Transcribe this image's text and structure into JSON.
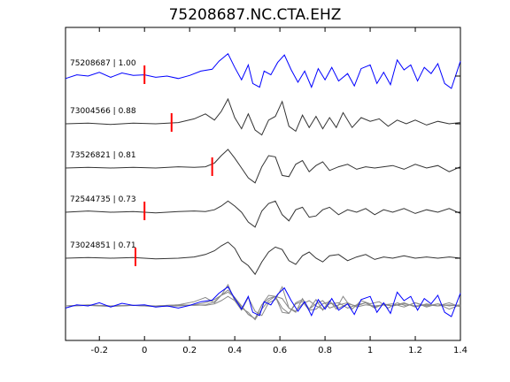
{
  "chart_data": {
    "type": "line",
    "title": "75208687.NC.CTA.EHZ",
    "xlabel": "",
    "ylabel": "",
    "xlim": [
      -0.35,
      1.4
    ],
    "x_ticks": [
      "-0.2",
      "0",
      "0.2",
      "0.4",
      "0.6",
      "0.8",
      "1",
      "1.2",
      "1.4"
    ],
    "x_tick_values": [
      -0.2,
      0,
      0.2,
      0.4,
      0.6,
      0.8,
      1.0,
      1.2,
      1.4
    ],
    "grid": false,
    "series": [
      {
        "name": "75208687 | 1.00",
        "color": "#0000ff",
        "pick_time": 0.0,
        "points": [
          [
            -0.35,
            -0.2
          ],
          [
            -0.3,
            0.1
          ],
          [
            -0.25,
            0.0
          ],
          [
            -0.2,
            0.3
          ],
          [
            -0.15,
            -0.1
          ],
          [
            -0.1,
            0.25
          ],
          [
            -0.05,
            0.05
          ],
          [
            0.0,
            0.1
          ],
          [
            0.05,
            -0.1
          ],
          [
            0.1,
            0.0
          ],
          [
            0.15,
            -0.2
          ],
          [
            0.2,
            0.05
          ],
          [
            0.25,
            0.4
          ],
          [
            0.3,
            0.55
          ],
          [
            0.33,
            1.2
          ],
          [
            0.37,
            1.8
          ],
          [
            0.4,
            0.7
          ],
          [
            0.43,
            -0.3
          ],
          [
            0.46,
            0.9
          ],
          [
            0.48,
            -0.6
          ],
          [
            0.51,
            -0.9
          ],
          [
            0.53,
            0.4
          ],
          [
            0.56,
            0.1
          ],
          [
            0.59,
            1.1
          ],
          [
            0.62,
            1.7
          ],
          [
            0.65,
            0.5
          ],
          [
            0.68,
            -0.5
          ],
          [
            0.71,
            0.4
          ],
          [
            0.74,
            -0.9
          ],
          [
            0.77,
            0.6
          ],
          [
            0.8,
            -0.3
          ],
          [
            0.83,
            0.7
          ],
          [
            0.86,
            -0.4
          ],
          [
            0.9,
            0.2
          ],
          [
            0.93,
            -0.8
          ],
          [
            0.96,
            0.6
          ],
          [
            1.0,
            0.9
          ],
          [
            1.03,
            -0.6
          ],
          [
            1.06,
            0.3
          ],
          [
            1.09,
            -0.7
          ],
          [
            1.12,
            1.3
          ],
          [
            1.15,
            0.5
          ],
          [
            1.18,
            0.9
          ],
          [
            1.21,
            -0.4
          ],
          [
            1.24,
            0.7
          ],
          [
            1.27,
            0.2
          ],
          [
            1.3,
            1.0
          ],
          [
            1.33,
            -0.6
          ],
          [
            1.36,
            -1.0
          ],
          [
            1.4,
            1.2
          ]
        ]
      },
      {
        "name": "73004566 | 0.88",
        "color": "#333333",
        "pick_time": 0.12,
        "points": [
          [
            -0.35,
            0.0
          ],
          [
            -0.25,
            0.05
          ],
          [
            -0.15,
            -0.05
          ],
          [
            -0.05,
            0.05
          ],
          [
            0.05,
            0.0
          ],
          [
            0.15,
            0.1
          ],
          [
            0.22,
            0.4
          ],
          [
            0.27,
            0.8
          ],
          [
            0.31,
            0.3
          ],
          [
            0.34,
            1.0
          ],
          [
            0.37,
            2.0
          ],
          [
            0.4,
            0.5
          ],
          [
            0.43,
            -0.4
          ],
          [
            0.46,
            0.8
          ],
          [
            0.49,
            -0.5
          ],
          [
            0.52,
            -0.9
          ],
          [
            0.55,
            0.3
          ],
          [
            0.58,
            0.6
          ],
          [
            0.61,
            1.8
          ],
          [
            0.64,
            -0.2
          ],
          [
            0.67,
            -0.6
          ],
          [
            0.7,
            0.7
          ],
          [
            0.73,
            -0.3
          ],
          [
            0.76,
            0.6
          ],
          [
            0.79,
            -0.4
          ],
          [
            0.82,
            0.5
          ],
          [
            0.85,
            -0.3
          ],
          [
            0.88,
            0.9
          ],
          [
            0.92,
            -0.3
          ],
          [
            0.96,
            0.5
          ],
          [
            1.0,
            0.2
          ],
          [
            1.04,
            0.4
          ],
          [
            1.08,
            -0.2
          ],
          [
            1.12,
            0.3
          ],
          [
            1.16,
            0.0
          ],
          [
            1.2,
            0.3
          ],
          [
            1.25,
            -0.1
          ],
          [
            1.3,
            0.2
          ],
          [
            1.35,
            0.0
          ],
          [
            1.4,
            0.1
          ]
        ]
      },
      {
        "name": "73526821 | 0.81",
        "color": "#333333",
        "pick_time": 0.3,
        "points": [
          [
            -0.35,
            0.0
          ],
          [
            -0.25,
            0.05
          ],
          [
            -0.15,
            0.0
          ],
          [
            -0.05,
            0.05
          ],
          [
            0.05,
            0.0
          ],
          [
            0.15,
            0.1
          ],
          [
            0.22,
            0.05
          ],
          [
            0.27,
            0.1
          ],
          [
            0.31,
            0.4
          ],
          [
            0.34,
            1.0
          ],
          [
            0.37,
            1.5
          ],
          [
            0.4,
            0.8
          ],
          [
            0.43,
            0.0
          ],
          [
            0.46,
            -0.8
          ],
          [
            0.49,
            -1.2
          ],
          [
            0.52,
            0.1
          ],
          [
            0.55,
            1.0
          ],
          [
            0.58,
            0.9
          ],
          [
            0.61,
            -0.6
          ],
          [
            0.64,
            -0.7
          ],
          [
            0.67,
            0.3
          ],
          [
            0.7,
            0.6
          ],
          [
            0.73,
            -0.3
          ],
          [
            0.76,
            0.2
          ],
          [
            0.79,
            0.5
          ],
          [
            0.82,
            -0.2
          ],
          [
            0.86,
            0.1
          ],
          [
            0.9,
            0.3
          ],
          [
            0.94,
            -0.1
          ],
          [
            0.98,
            0.1
          ],
          [
            1.02,
            0.0
          ],
          [
            1.06,
            0.1
          ],
          [
            1.1,
            0.2
          ],
          [
            1.15,
            -0.1
          ],
          [
            1.2,
            0.3
          ],
          [
            1.25,
            0.0
          ],
          [
            1.3,
            0.2
          ],
          [
            1.35,
            -0.3
          ],
          [
            1.4,
            0.1
          ]
        ]
      },
      {
        "name": "72544735 | 0.73",
        "color": "#333333",
        "pick_time": 0.0,
        "points": [
          [
            -0.35,
            0.0
          ],
          [
            -0.25,
            0.1
          ],
          [
            -0.15,
            0.0
          ],
          [
            -0.05,
            0.05
          ],
          [
            0.05,
            -0.05
          ],
          [
            0.15,
            0.05
          ],
          [
            0.22,
            0.1
          ],
          [
            0.27,
            0.05
          ],
          [
            0.31,
            0.2
          ],
          [
            0.34,
            0.5
          ],
          [
            0.37,
            0.9
          ],
          [
            0.4,
            0.5
          ],
          [
            0.43,
            0.0
          ],
          [
            0.46,
            -0.8
          ],
          [
            0.49,
            -1.2
          ],
          [
            0.52,
            0.1
          ],
          [
            0.55,
            0.7
          ],
          [
            0.58,
            0.9
          ],
          [
            0.61,
            -0.2
          ],
          [
            0.64,
            -0.7
          ],
          [
            0.67,
            0.2
          ],
          [
            0.7,
            0.4
          ],
          [
            0.73,
            -0.4
          ],
          [
            0.76,
            -0.3
          ],
          [
            0.79,
            0.2
          ],
          [
            0.82,
            0.4
          ],
          [
            0.86,
            -0.2
          ],
          [
            0.9,
            0.2
          ],
          [
            0.94,
            0.0
          ],
          [
            0.98,
            0.3
          ],
          [
            1.02,
            -0.2
          ],
          [
            1.06,
            0.2
          ],
          [
            1.1,
            0.0
          ],
          [
            1.15,
            0.3
          ],
          [
            1.2,
            -0.1
          ],
          [
            1.25,
            0.2
          ],
          [
            1.3,
            0.0
          ],
          [
            1.35,
            0.3
          ],
          [
            1.4,
            -0.1
          ]
        ]
      },
      {
        "name": "73024851 | 0.71",
        "color": "#333333",
        "pick_time": -0.04,
        "points": [
          [
            -0.35,
            0.0
          ],
          [
            -0.25,
            0.05
          ],
          [
            -0.15,
            0.0
          ],
          [
            -0.05,
            0.05
          ],
          [
            0.05,
            -0.05
          ],
          [
            0.15,
            0.0
          ],
          [
            0.22,
            0.1
          ],
          [
            0.27,
            0.3
          ],
          [
            0.31,
            0.6
          ],
          [
            0.34,
            1.0
          ],
          [
            0.37,
            1.3
          ],
          [
            0.4,
            0.8
          ],
          [
            0.43,
            -0.2
          ],
          [
            0.46,
            -0.6
          ],
          [
            0.49,
            -1.3
          ],
          [
            0.52,
            -0.3
          ],
          [
            0.55,
            0.5
          ],
          [
            0.58,
            0.9
          ],
          [
            0.61,
            0.7
          ],
          [
            0.64,
            -0.2
          ],
          [
            0.67,
            -0.5
          ],
          [
            0.7,
            0.2
          ],
          [
            0.73,
            0.5
          ],
          [
            0.76,
            0.0
          ],
          [
            0.79,
            -0.3
          ],
          [
            0.82,
            0.2
          ],
          [
            0.86,
            0.3
          ],
          [
            0.9,
            -0.2
          ],
          [
            0.94,
            0.1
          ],
          [
            0.98,
            0.3
          ],
          [
            1.02,
            -0.1
          ],
          [
            1.06,
            0.1
          ],
          [
            1.1,
            0.0
          ],
          [
            1.15,
            0.2
          ],
          [
            1.2,
            0.0
          ],
          [
            1.25,
            0.1
          ],
          [
            1.3,
            0.0
          ],
          [
            1.35,
            0.1
          ],
          [
            1.4,
            0.0
          ]
        ]
      }
    ],
    "overlay": {
      "reference": "75208687 | 1.00",
      "reference_color": "#0000ff",
      "others_color": "#888888"
    },
    "pick_marker_color": "#ff0000"
  }
}
